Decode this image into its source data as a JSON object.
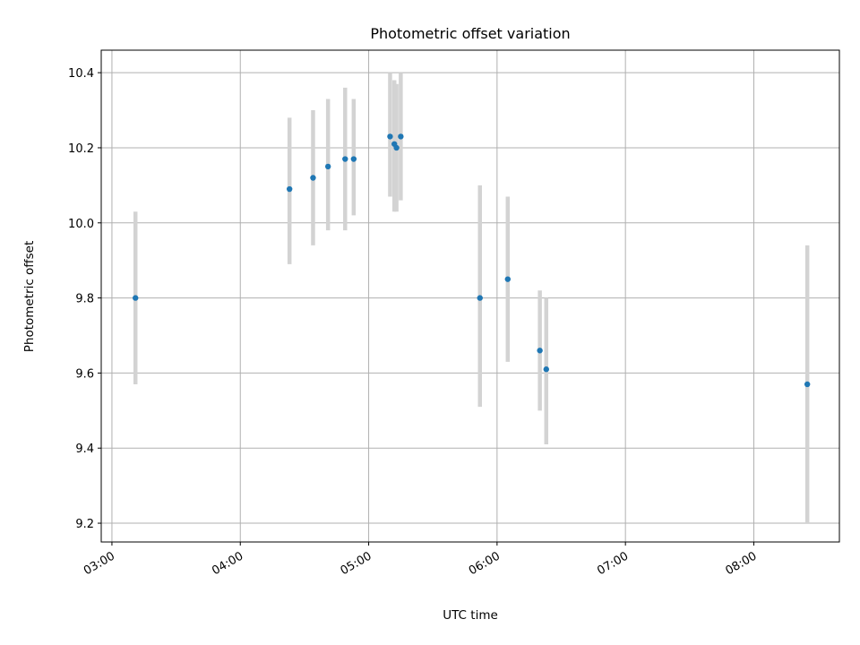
{
  "chart_data": {
    "type": "scatter",
    "title": "Photometric offset variation",
    "xlabel": "UTC time",
    "ylabel": "Photometric offset",
    "x_axis_type": "time",
    "xlim": [
      "02:55",
      "08:40"
    ],
    "ylim": [
      9.15,
      10.46
    ],
    "x_ticks": [
      "03:00",
      "04:00",
      "05:00",
      "06:00",
      "07:00",
      "08:00"
    ],
    "y_ticks": [
      9.2,
      9.4,
      9.6,
      9.8,
      10.0,
      10.2,
      10.4
    ],
    "grid": true,
    "legend": "none",
    "series": [
      {
        "marker": "point",
        "error_bars": "vertical",
        "points": [
          {
            "x": "03:11",
            "y": 9.8,
            "y_low": 9.57,
            "y_high": 10.03
          },
          {
            "x": "04:23",
            "y": 10.09,
            "y_low": 9.89,
            "y_high": 10.28
          },
          {
            "x": "04:34",
            "y": 10.12,
            "y_low": 9.94,
            "y_high": 10.3
          },
          {
            "x": "04:41",
            "y": 10.15,
            "y_low": 9.98,
            "y_high": 10.33
          },
          {
            "x": "04:49",
            "y": 10.17,
            "y_low": 9.98,
            "y_high": 10.36
          },
          {
            "x": "04:53",
            "y": 10.17,
            "y_low": 10.02,
            "y_high": 10.33
          },
          {
            "x": "05:10",
            "y": 10.23,
            "y_low": 10.07,
            "y_high": 10.4
          },
          {
            "x": "05:12",
            "y": 10.21,
            "y_low": 10.03,
            "y_high": 10.38
          },
          {
            "x": "05:13",
            "y": 10.2,
            "y_low": 10.03,
            "y_high": 10.37
          },
          {
            "x": "05:15",
            "y": 10.23,
            "y_low": 10.06,
            "y_high": 10.4
          },
          {
            "x": "05:52",
            "y": 9.8,
            "y_low": 9.51,
            "y_high": 10.1
          },
          {
            "x": "06:05",
            "y": 9.85,
            "y_low": 9.63,
            "y_high": 10.07
          },
          {
            "x": "06:20",
            "y": 9.66,
            "y_low": 9.5,
            "y_high": 9.82
          },
          {
            "x": "06:23",
            "y": 9.61,
            "y_low": 9.41,
            "y_high": 9.8
          },
          {
            "x": "08:25",
            "y": 9.57,
            "y_low": 9.2,
            "y_high": 9.94
          }
        ]
      }
    ],
    "colors": {
      "marker": "#1f77b4",
      "error_bar": "#d3d3d3",
      "grid": "#b0b0b0"
    }
  }
}
